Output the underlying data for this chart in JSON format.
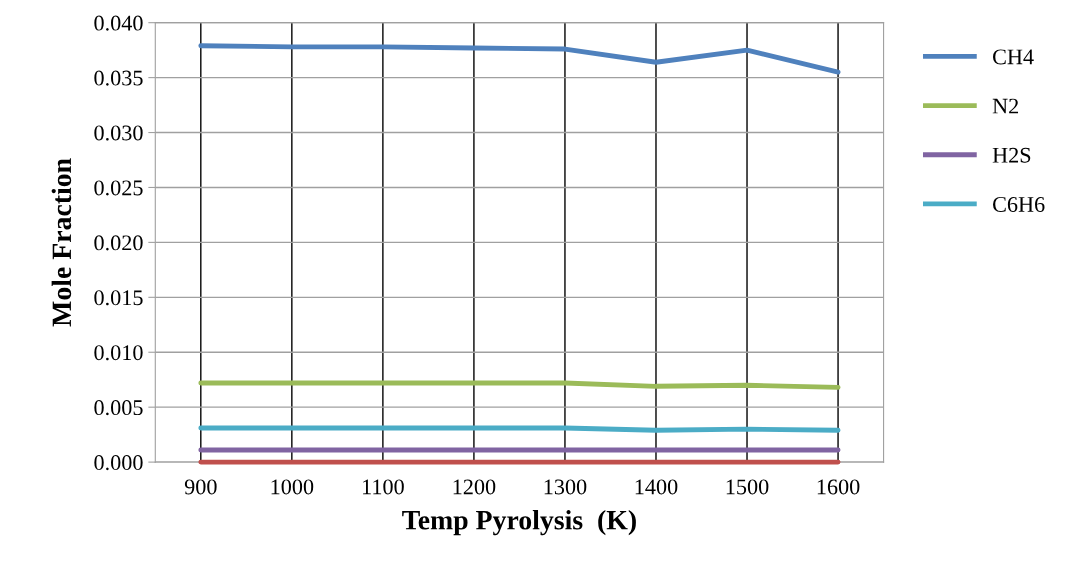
{
  "chart_data": {
    "type": "line",
    "xlabel": "Temp Pyrolysis  (K)",
    "ylabel": "Mole Fraction",
    "categories": [
      "900",
      "1000",
      "1100",
      "1200",
      "1300",
      "1400",
      "1500",
      "1600"
    ],
    "series": [
      {
        "name": "CH4",
        "color": "#4f81bd",
        "values": [
          0.0379,
          0.0378,
          0.0378,
          0.0377,
          0.0376,
          0.0364,
          0.0375,
          0.0355
        ]
      },
      {
        "name": "N2",
        "color": "#9bbb59",
        "values": [
          0.0072,
          0.0072,
          0.0072,
          0.0072,
          0.0072,
          0.0069,
          0.007,
          0.0068
        ]
      },
      {
        "name": "H2S",
        "color": "#8064a2",
        "values": [
          0.0011,
          0.0011,
          0.0011,
          0.0011,
          0.0011,
          0.0011,
          0.0011,
          0.0011
        ]
      },
      {
        "name": "C6H6",
        "color": "#4bacc6",
        "values": [
          0.0031,
          0.0031,
          0.0031,
          0.0031,
          0.0031,
          0.0029,
          0.003,
          0.0029
        ]
      },
      {
        "color": "#c0504d",
        "values": [
          0,
          0,
          0,
          0,
          0,
          0,
          0,
          0
        ]
      }
    ],
    "ylim": [
      0,
      0.04
    ],
    "yticks": [
      {
        "value": 0,
        "label": "0.000"
      },
      {
        "value": 0.005,
        "label": "0.005"
      },
      {
        "value": 0.01,
        "label": "0.010"
      },
      {
        "value": 0.015,
        "label": "0.015"
      },
      {
        "value": 0.02,
        "label": "0.020"
      },
      {
        "value": 0.025,
        "label": "0.025"
      },
      {
        "value": 0.03,
        "label": "0.030"
      },
      {
        "value": 0.035,
        "label": "0.035"
      },
      {
        "value": 0.04,
        "label": "0.040"
      }
    ],
    "grid": true,
    "legend": "right",
    "marker": "none",
    "line_style": "solid"
  }
}
